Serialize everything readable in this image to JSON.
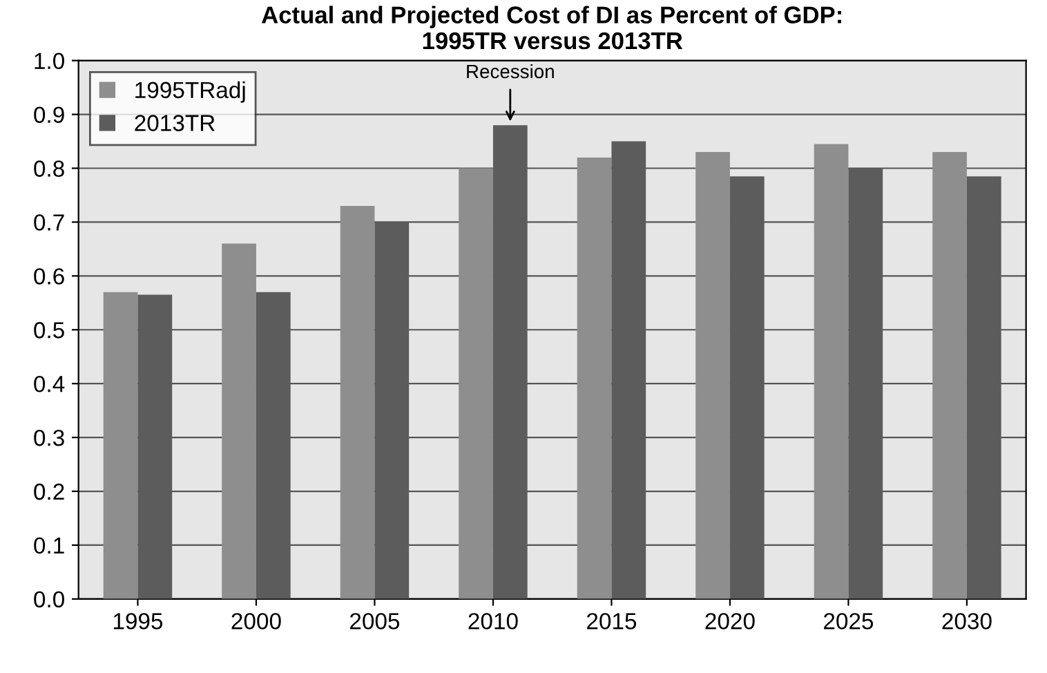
{
  "chart_data": {
    "type": "bar",
    "title": "Actual and Projected Cost of DI as Percent of GDP:\n1995TR versus 2013TR",
    "categories": [
      "1995",
      "2000",
      "2005",
      "2010",
      "2015",
      "2020",
      "2025",
      "2030"
    ],
    "series": [
      {
        "name": "1995TRadj",
        "color": "#8e8e8e",
        "values": [
          0.57,
          0.66,
          0.73,
          0.8,
          0.82,
          0.83,
          0.845,
          0.83
        ]
      },
      {
        "name": "2013TR",
        "color": "#5c5c5c",
        "values": [
          0.565,
          0.57,
          0.7,
          0.88,
          0.85,
          0.785,
          0.8,
          0.785
        ]
      }
    ],
    "ylim": [
      0.0,
      1.0
    ],
    "yticks": [
      {
        "value": 0,
        "label": "0.0"
      },
      0.1,
      0.2,
      0.3,
      0.4,
      0.5,
      0.6,
      0.7,
      0.8,
      0.9,
      {
        "value": 1,
        "label": "1.0"
      }
    ],
    "grid": "y",
    "legend": "top left",
    "annotations": [
      {
        "text": "Recession",
        "x": "2010",
        "y": 0.88
      }
    ]
  }
}
